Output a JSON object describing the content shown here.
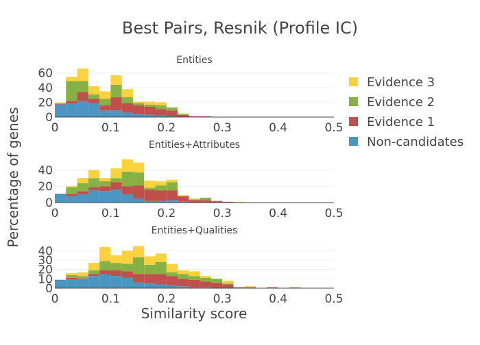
{
  "figure": {
    "title": "Best Pairs, Resnik (Profile IC)",
    "xlabel": "Similarity score",
    "ylabel": "Percentage of genes"
  },
  "legend": {
    "placement": "top-right",
    "items": [
      {
        "name": "Evidence 3",
        "color": "#fbd13d"
      },
      {
        "name": "Evidence 2",
        "color": "#86b145"
      },
      {
        "name": "Evidence 1",
        "color": "#c0504d"
      },
      {
        "name": "Non-candidates",
        "color": "#4a96c1"
      }
    ]
  },
  "chart_data": [
    {
      "type": "bar",
      "stacked": true,
      "title": "Entities",
      "bin_width": 0.02,
      "xlim": [
        0,
        0.5
      ],
      "ylim": [
        0,
        70
      ],
      "x_ticks": [
        "0",
        "0.1",
        "0.2",
        "0.3",
        "0.4",
        "0.5"
      ],
      "y_ticks": [
        0,
        20,
        40,
        60
      ],
      "grid": true,
      "x": [
        0.01,
        0.03,
        0.05,
        0.07,
        0.09,
        0.11,
        0.13,
        0.15,
        0.17,
        0.19,
        0.21,
        0.23,
        0.25,
        0.27
      ],
      "series": [
        {
          "name": "Non-candidates",
          "values": [
            17,
            18,
            22,
            19,
            9,
            9,
            6,
            4,
            3,
            2,
            1,
            0,
            0,
            0
          ]
        },
        {
          "name": "Evidence 1",
          "values": [
            1,
            4,
            12,
            6,
            7,
            18,
            13,
            12,
            11,
            9,
            8,
            3,
            1,
            1
          ]
        },
        {
          "name": "Evidence 2",
          "values": [
            1,
            27,
            15,
            6,
            9,
            17,
            8,
            3,
            3,
            5,
            4,
            1,
            0,
            0
          ]
        },
        {
          "name": "Evidence 3",
          "values": [
            1,
            6,
            17,
            11,
            10,
            13,
            11,
            2,
            4,
            4,
            0,
            1,
            0,
            0
          ]
        }
      ]
    },
    {
      "type": "bar",
      "stacked": true,
      "title": "Entities+Attributes",
      "bin_width": 0.02,
      "xlim": [
        0,
        0.5
      ],
      "ylim": [
        0,
        57
      ],
      "x_ticks": [
        "0",
        "0.1",
        "0.2",
        "0.3",
        "0.4",
        "0.5"
      ],
      "y_ticks": [
        0,
        20,
        40
      ],
      "grid": true,
      "x": [
        0.01,
        0.03,
        0.05,
        0.07,
        0.09,
        0.11,
        0.13,
        0.15,
        0.17,
        0.19,
        0.21,
        0.23,
        0.25,
        0.27,
        0.29,
        0.31,
        0.33
      ],
      "series": [
        {
          "name": "Non-candidates",
          "values": [
            11,
            8,
            10,
            15,
            14,
            16,
            10,
            5,
            2,
            2,
            3,
            1,
            0,
            0,
            0,
            0,
            0
          ]
        },
        {
          "name": "Evidence 1",
          "values": [
            0,
            3,
            4,
            4,
            6,
            9,
            10,
            16,
            14,
            13,
            12,
            7,
            3,
            3,
            2,
            1,
            0
          ]
        },
        {
          "name": "Evidence 2",
          "values": [
            0,
            8,
            10,
            11,
            6,
            5,
            18,
            16,
            2,
            6,
            10,
            0,
            1,
            3,
            0,
            0,
            0
          ]
        },
        {
          "name": "Evidence 3",
          "values": [
            0,
            1,
            6,
            10,
            4,
            12,
            15,
            12,
            9,
            5,
            3,
            1,
            1,
            0,
            0,
            0,
            1
          ]
        }
      ]
    },
    {
      "type": "bar",
      "stacked": true,
      "title": "Entities+Qualities",
      "bin_width": 0.02,
      "xlim": [
        0,
        0.5
      ],
      "ylim": [
        0,
        49
      ],
      "x_ticks": [
        "0",
        "0.1",
        "0.2",
        "0.3",
        "0.4",
        "0.5"
      ],
      "y_ticks": [
        0,
        10,
        20,
        30,
        40
      ],
      "grid": true,
      "x": [
        0.01,
        0.03,
        0.05,
        0.07,
        0.09,
        0.11,
        0.13,
        0.15,
        0.17,
        0.19,
        0.21,
        0.23,
        0.25,
        0.27,
        0.29,
        0.31,
        0.33,
        0.35,
        0.37,
        0.39,
        0.41,
        0.43,
        0.45
      ],
      "series": [
        {
          "name": "Non-candidates",
          "values": [
            9,
            9,
            9,
            13,
            15,
            13,
            11,
            6,
            5,
            4,
            3,
            2,
            1,
            1,
            0,
            0,
            0,
            0,
            0,
            0,
            0,
            0,
            0
          ]
        },
        {
          "name": "Evidence 1",
          "values": [
            0,
            2,
            1,
            2,
            4,
            6,
            7,
            9,
            10,
            11,
            10,
            8,
            8,
            6,
            6,
            4,
            1,
            1,
            0,
            1,
            0,
            0,
            0
          ]
        },
        {
          "name": "Evidence 2",
          "values": [
            0,
            3,
            3,
            4,
            10,
            8,
            8,
            18,
            10,
            13,
            4,
            5,
            4,
            4,
            4,
            1,
            0,
            0,
            0,
            0,
            0,
            1,
            0
          ]
        },
        {
          "name": "Evidence 3",
          "values": [
            0,
            2,
            4,
            8,
            15,
            8,
            14,
            12,
            9,
            9,
            9,
            4,
            5,
            2,
            0,
            3,
            0,
            1,
            0,
            0,
            0,
            0,
            0
          ]
        }
      ]
    }
  ]
}
